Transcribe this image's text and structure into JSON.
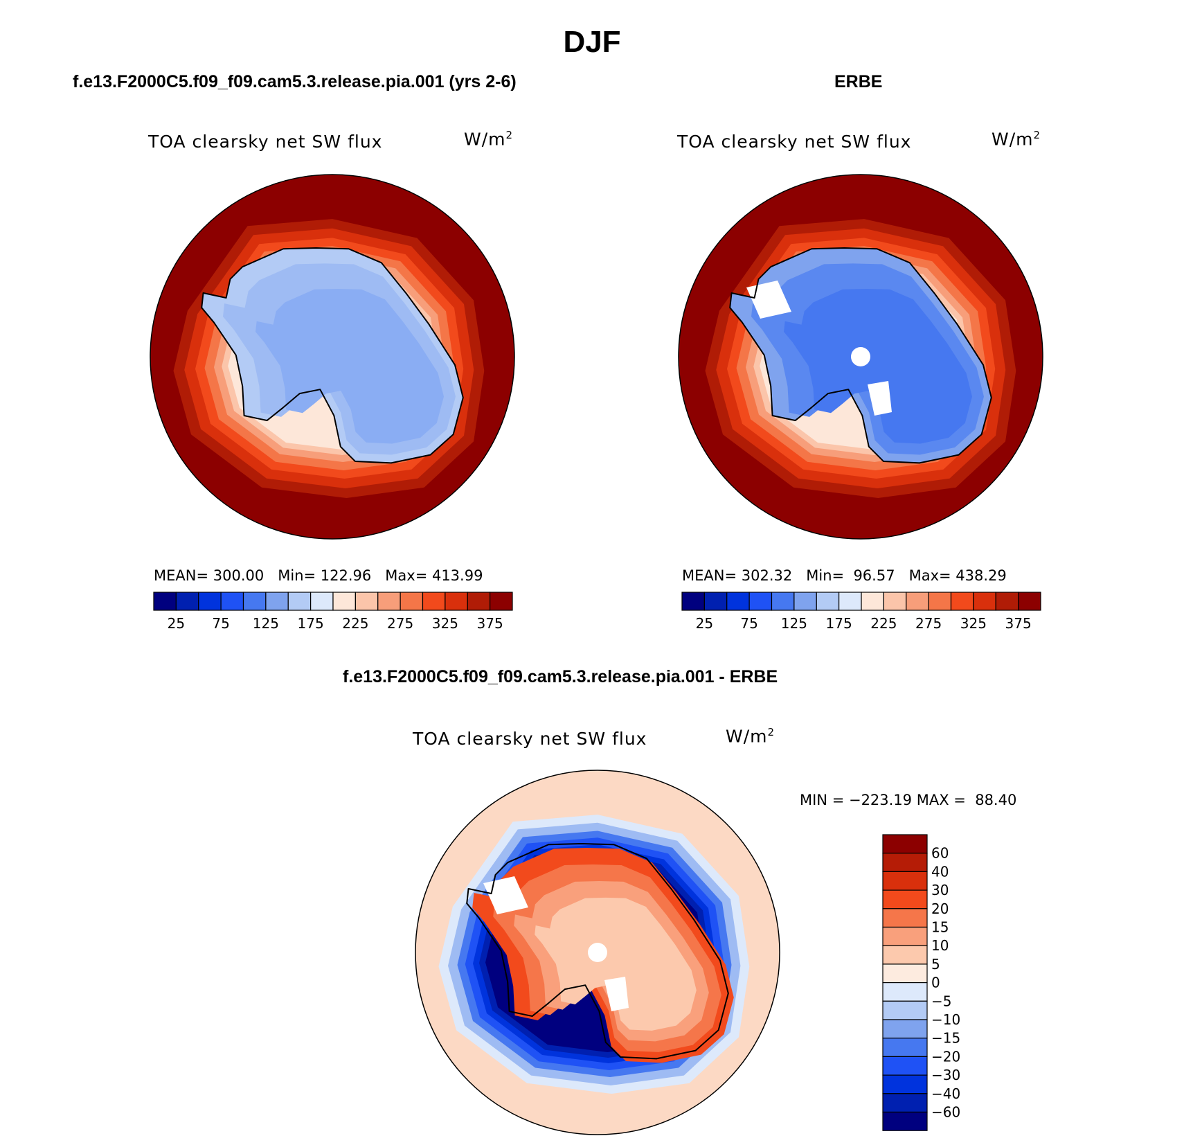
{
  "title": "DJF",
  "panels": [
    {
      "case_title": "f.e13.F2000C5.f09_f09.cam5.3.release.pia.001 (yrs 2-6)",
      "variable": "TOA clearsky net SW flux",
      "units_base": "W/m",
      "units_exp": "2",
      "stats": "MEAN= 300.00   Min= 122.96   Max= 413.99"
    },
    {
      "case_title": "ERBE",
      "variable": "TOA clearsky net SW flux",
      "units_base": "W/m",
      "units_exp": "2",
      "stats": "MEAN= 302.32   Min=  96.57   Max= 438.29"
    },
    {
      "case_title": "f.e13.F2000C5.f09_f09.cam5.3.release.pia.001 - ERBE",
      "variable": "TOA clearsky net SW flux",
      "units_base": "W/m",
      "units_exp": "2",
      "stats": "MIN = −223.19 MAX =  88.40"
    }
  ],
  "abs_colorbar": {
    "labels": [
      "25",
      "75",
      "125",
      "175",
      "225",
      "275",
      "325",
      "375"
    ],
    "colors": [
      "#00007f",
      "#0020b0",
      "#0033dd",
      "#1f52f5",
      "#4678f0",
      "#7fa3ee",
      "#b3cbf5",
      "#dde9fb",
      "#fde7d9",
      "#fbc5aa",
      "#f79e7a",
      "#f47648",
      "#f24a1c",
      "#d9300c",
      "#b01c06",
      "#8c0000"
    ]
  },
  "diff_colorbar": {
    "labels": [
      "60",
      "40",
      "30",
      "20",
      "15",
      "10",
      "5",
      "0",
      "−5",
      "−10",
      "−15",
      "−20",
      "−30",
      "−40",
      "−60"
    ],
    "colors": [
      "#8c0000",
      "#b51c06",
      "#d9300c",
      "#f24a1c",
      "#f5764a",
      "#f9a07c",
      "#fcc9ad",
      "#fdebdf",
      "#dde9fb",
      "#b3cbf5",
      "#7fa3ee",
      "#4678f0",
      "#1f52f5",
      "#0033dd",
      "#0020b0",
      "#00007f"
    ]
  },
  "map_colors": {
    "ocean_high": "#8c0000",
    "coast_band": [
      "#b01c06",
      "#d9300c",
      "#f24a1c",
      "#f47648",
      "#f79e7a",
      "#fbc5aa",
      "#fde7d9"
    ],
    "model_ice": [
      "#b3cbf5",
      "#9ebbf3",
      "#8aadf3"
    ],
    "obs_ice": [
      "#7fa3ee",
      "#5a88f0",
      "#4678f0"
    ],
    "diff_ocean": "#fcd9c4",
    "diff_ring": [
      "#dde9fb",
      "#9ebbf3",
      "#4678f0",
      "#1f52f5",
      "#0033dd",
      "#0020b0",
      "#00007f"
    ],
    "diff_ice": [
      "#f24a1c",
      "#f5764a",
      "#f9a07c",
      "#fcc9ad"
    ],
    "missing": "#ffffff"
  }
}
